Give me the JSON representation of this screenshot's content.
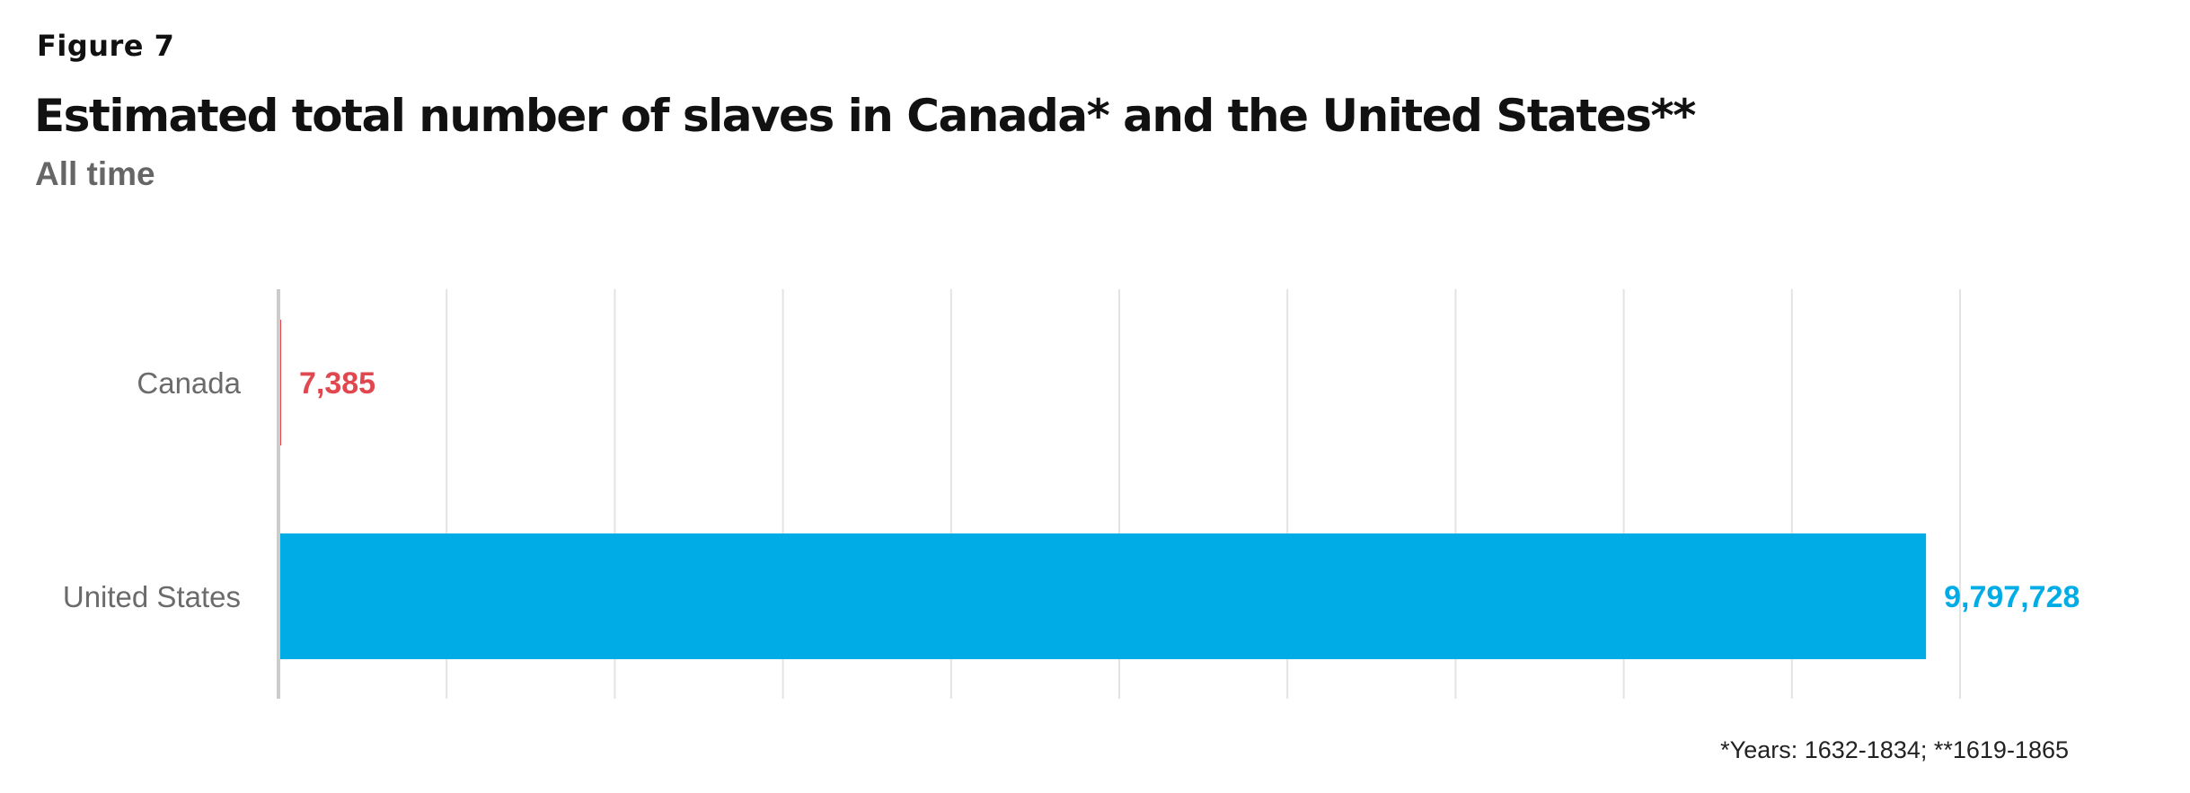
{
  "figure_label": "Figure 7",
  "title": "Estimated total number of slaves in Canada* and the United States**",
  "subtitle": "All time",
  "footnote": "*Years: 1632-1834; **1619-1865",
  "chart_data": {
    "type": "bar",
    "orientation": "horizontal",
    "categories": [
      "Canada",
      "United States"
    ],
    "values": [
      7385,
      9797728
    ],
    "value_labels": [
      "7,385",
      "9,797,728"
    ],
    "colors": [
      "#e0474f",
      "#00ace6"
    ],
    "xlim": [
      0,
      10000000
    ],
    "grid": true,
    "xlabel": "",
    "ylabel": ""
  }
}
